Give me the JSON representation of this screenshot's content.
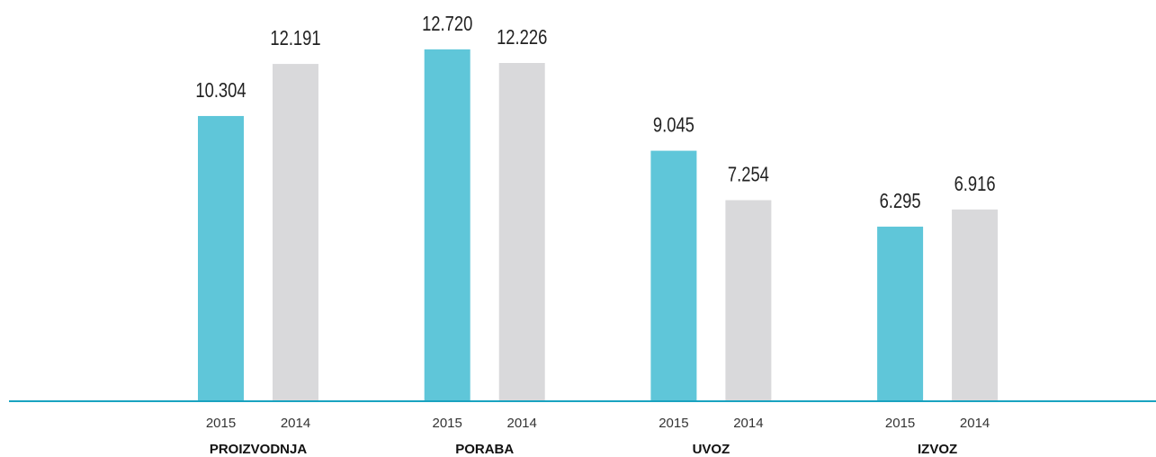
{
  "chart_data": {
    "type": "bar",
    "categories": [
      "PROIZVODNJA",
      "PORABA",
      "UVOZ",
      "IZVOZ"
    ],
    "series": [
      {
        "name": "2015",
        "color": "#5fc6d9",
        "values": [
          10304,
          12720,
          9045,
          6295
        ],
        "value_labels": [
          "10.304",
          "12.720",
          "9.045",
          "6.295"
        ]
      },
      {
        "name": "2014",
        "color": "#d9d9db",
        "values": [
          12191,
          12226,
          7254,
          6916
        ],
        "value_labels": [
          "12.191",
          "12.226",
          "7.254",
          "6.916"
        ]
      }
    ],
    "ylim": [
      0,
      14000
    ]
  }
}
